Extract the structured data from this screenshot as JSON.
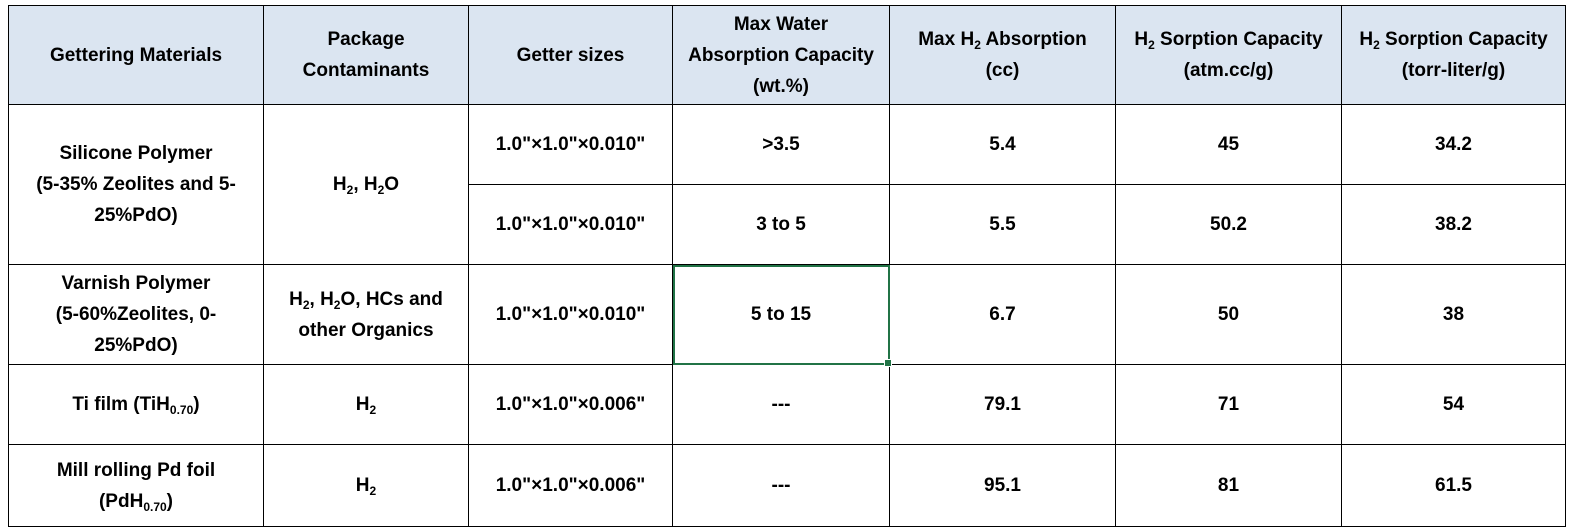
{
  "colors": {
    "header_bg": "#dbe5f1",
    "grid": "#000000",
    "selection": "#217346"
  },
  "headers": {
    "gettering": "Gettering Materials",
    "contaminants_1": "Package",
    "contaminants_2": "Contaminants",
    "sizes": "Getter sizes",
    "water_1": "Max Water",
    "water_2": "Absorption Capacity",
    "water_3": "(wt.%)",
    "h2abs_pre": "Max H",
    "h2abs_sub": "2",
    "h2abs_post": " Absorption",
    "h2abs_unit": "(cc)",
    "atm_pre": "H",
    "atm_sub": "2",
    "atm_post": " Sorption Capacity",
    "atm_unit": "(atm.cc/g)",
    "torr_pre": "H",
    "torr_sub": "2",
    "torr_post": " Sorption Capacity",
    "torr_unit": "(torr-liter/g)"
  },
  "rows": [
    {
      "material_1": "Silicone Polymer",
      "material_2": "(5-35% Zeolites and 5-",
      "material_3": "25%PdO)",
      "cont_a": "H",
      "cont_a_sub": "2",
      "cont_b": ", H",
      "cont_b_sub": "2",
      "cont_c": "O",
      "sub_rows": [
        {
          "size": "1.0\"×1.0\"×0.010\"",
          "water": ">3.5",
          "h2": "5.4",
          "atm": "45",
          "torr": "34.2"
        },
        {
          "size": "1.0\"×1.0\"×0.010\"",
          "water": "3 to 5",
          "h2": "5.5",
          "atm": "50.2",
          "torr": "38.2"
        }
      ]
    },
    {
      "material_1": "Varnish Polymer",
      "material_2": "(5-60%Zeolites, 0-",
      "material_3": "25%PdO)",
      "cont_a": "H",
      "cont_a_sub": "2",
      "cont_b": ", H",
      "cont_b_sub": "2",
      "cont_c": "O, HCs and",
      "cont_line2": "other Organics",
      "size": "1.0\"×1.0\"×0.010\"",
      "water": "5 to 15",
      "h2": "6.7",
      "atm": "50",
      "torr": "38"
    },
    {
      "material_pre": "Ti film (TiH",
      "material_sub": "0.70",
      "material_post": ")",
      "cont_a": "H",
      "cont_a_sub": "2",
      "size": "1.0\"×1.0\"×0.006\"",
      "water": "---",
      "h2": "79.1",
      "atm": "71",
      "torr": "54"
    },
    {
      "material_1": "Mill rolling Pd foil",
      "material_pre": "(PdH",
      "material_sub": "0.70",
      "material_post": ")",
      "cont_a": "H",
      "cont_a_sub": "2",
      "size": "1.0\"×1.0\"×0.006\"",
      "water": "---",
      "h2": "95.1",
      "atm": "81",
      "torr": "61.5"
    }
  ]
}
